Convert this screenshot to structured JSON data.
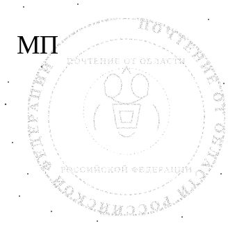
{
  "document": {
    "seal_label": "МП",
    "seal_ring_text": "ПОЧТЕНИЕ ОТ ОБЛАСТИ РОССИЙСКОЙ ФЕДЕРАЦИИ",
    "seal_center_text": "ПОЧТЕНИЕ ОТ ОБЛАСТИ",
    "seal_bottom_text": "РОССИЙСКОЙ ФЕДЕРАЦИИ"
  },
  "colors": {
    "ink": "#000000",
    "stamp": "#5a5a5a",
    "paper": "#ffffff"
  }
}
